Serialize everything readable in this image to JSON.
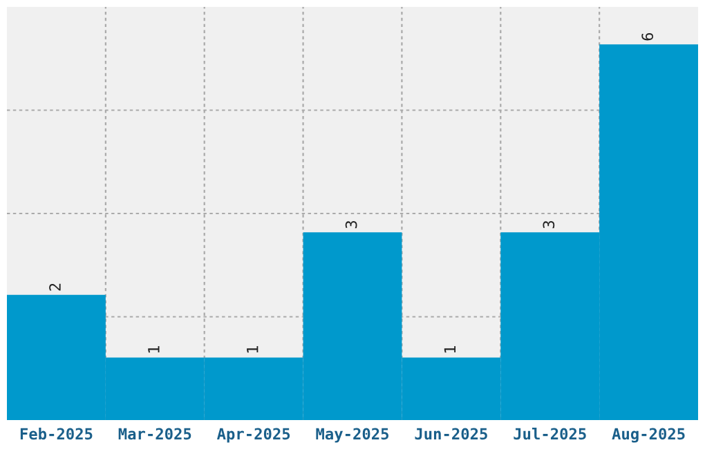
{
  "chart_data": {
    "type": "bar",
    "categories": [
      "Feb-2025",
      "Mar-2025",
      "Apr-2025",
      "May-2025",
      "Jun-2025",
      "Jul-2025",
      "Aug-2025"
    ],
    "values": [
      2,
      1,
      1,
      3,
      1,
      3,
      6
    ],
    "color": "#0099cc",
    "ylim": [
      0,
      6.6
    ],
    "yticks": [
      {
        "value": 1.65,
        "label": null
      },
      {
        "value": 3.3,
        "label": null
      },
      {
        "value": 4.95,
        "label": null
      }
    ],
    "tick_labels": "x",
    "grid": true,
    "data_labels": true
  }
}
